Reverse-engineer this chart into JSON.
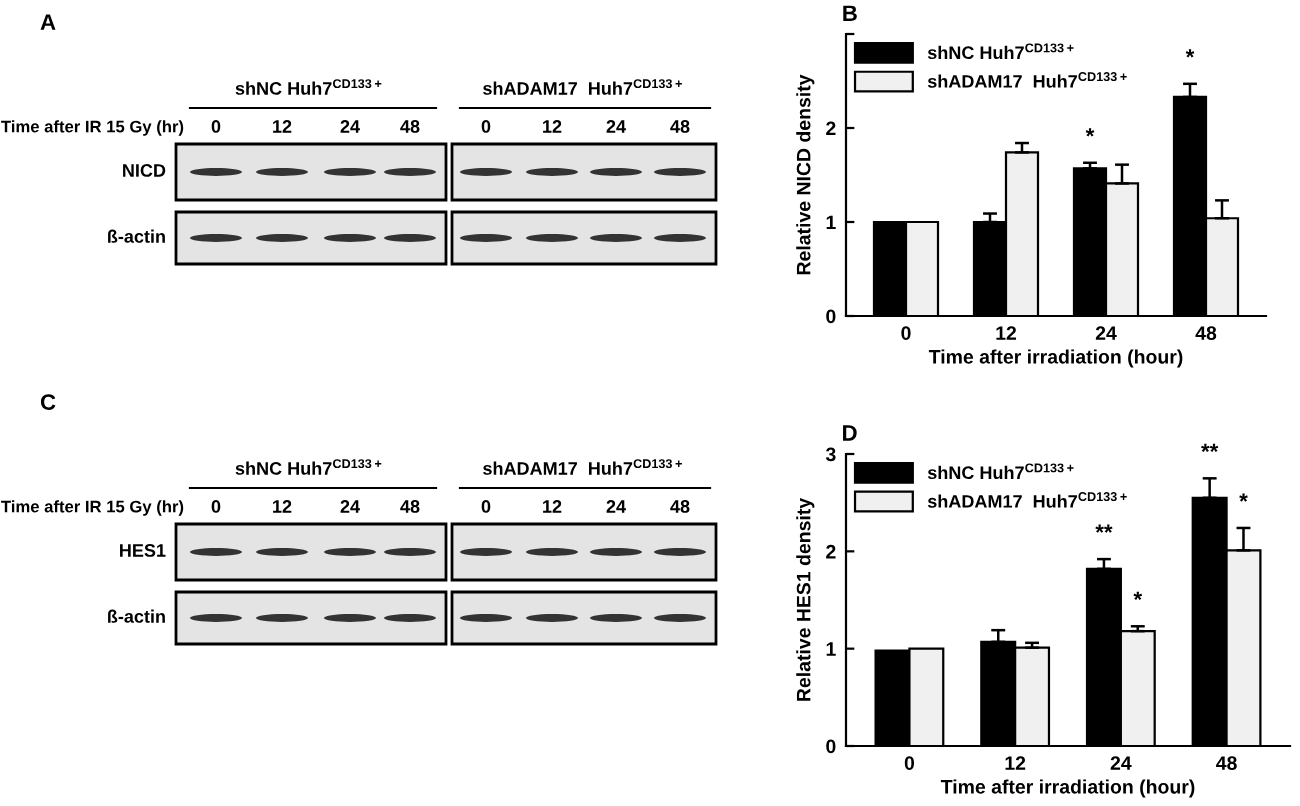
{
  "chart_data": [
    {
      "type": "other",
      "title": "A",
      "annotations": [
        "shNC Huh7$^{CD133+}$",
        "shADAM17  Huh7$^{CD133+}$",
        "Time after IR 15 Gy (hr)",
        "0",
        "12",
        "24",
        "48",
        "0",
        "12",
        "24",
        "48",
        "NICD",
        "ß-actin"
      ]
    },
    {
      "type": "bar",
      "title": "B",
      "categories": [
        "0",
        "12",
        "24",
        "48"
      ],
      "series": [
        {
          "name": "shNC Huh7$^{CD133+}$",
          "color": "#000000",
          "values": [
            1.0,
            1.0,
            1.57,
            2.33
          ],
          "errors": [
            null,
            0.09,
            0.06,
            0.14
          ]
        },
        {
          "name": "shADAM17  Huh7$^{CD133+}$",
          "color": "#f0f0f0",
          "values": [
            1.0,
            1.74,
            1.41,
            1.04
          ],
          "errors": [
            null,
            0.1,
            0.2,
            0.19
          ]
        }
      ],
      "xlabel": "Time after irradiation (hour)",
      "ylabel": "Relative NICD density",
      "ylim": [
        0,
        3
      ],
      "yticks": [
        0,
        1,
        2,
        {
          "value": 3,
          "label": null
        }
      ],
      "legend": "top left",
      "grid": false,
      "annotations": [
        {
          "text": "*",
          "x": "24",
          "y": 1.57
        },
        {
          "text": "*",
          "x": "48",
          "y": 2.33
        }
      ]
    },
    {
      "type": "other",
      "title": "C",
      "annotations": [
        "shNC Huh7$^{CD133+}$",
        "shADAM17  Huh7$^{CD133+}$",
        "Time after IR 15 Gy (hr)",
        "0",
        "12",
        "24",
        "48",
        "0",
        "12",
        "24",
        "48",
        "HES1",
        "ß-actin"
      ]
    },
    {
      "type": "bar",
      "title": "D",
      "categories": [
        "0",
        "12",
        "24",
        "48"
      ],
      "series": [
        {
          "name": "shNC Huh7$^{CD133+}$",
          "color": "#000000",
          "values": [
            0.98,
            1.07,
            1.82,
            2.55
          ],
          "errors": [
            null,
            0.12,
            0.1,
            0.2
          ]
        },
        {
          "name": "shADAM17  Huh7$^{CD133+}$",
          "color": "#f0f0f0",
          "values": [
            1.0,
            1.01,
            1.18,
            2.01
          ],
          "errors": [
            null,
            0.05,
            0.05,
            0.23
          ]
        }
      ],
      "xlabel": "Time after irradiation (hour)",
      "ylabel": "Relative HES1 density",
      "ylim": [
        0,
        3
      ],
      "yticks": [
        0,
        1,
        2,
        3
      ],
      "legend": "top left",
      "grid": false,
      "annotations": [
        {
          "text": "**",
          "x": "24",
          "y": 1.82
        },
        {
          "text": "*",
          "x": "24",
          "y": 1.18
        },
        {
          "text": "**",
          "x": "48",
          "y": 2.55
        },
        {
          "text": "*",
          "x": "48",
          "y": 2.01
        }
      ]
    }
  ]
}
